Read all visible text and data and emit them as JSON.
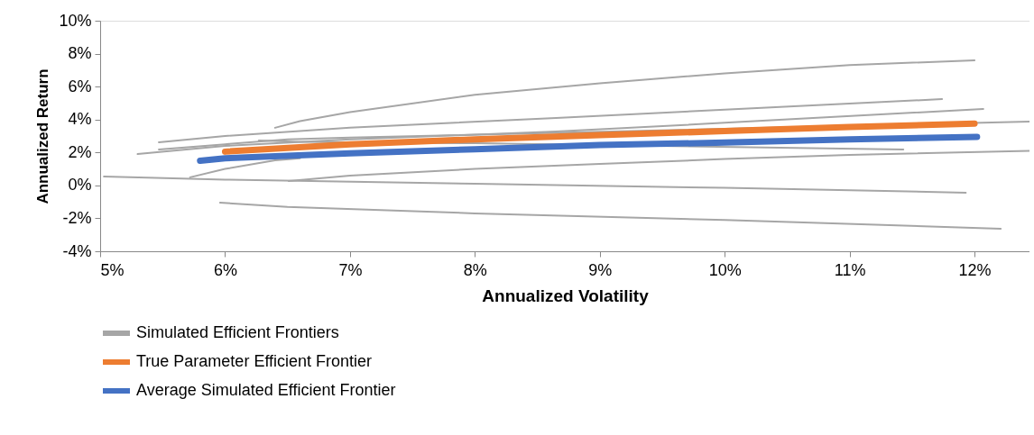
{
  "chart_data": {
    "type": "line",
    "xlabel": "Annualized Volatility",
    "ylabel": "Annualized Return",
    "xlim": [
      5,
      12.44
    ],
    "xticks": [
      {
        "value": 5,
        "label": "5%"
      },
      {
        "value": 6,
        "label": "6%"
      },
      {
        "value": 7,
        "label": "7%"
      },
      {
        "value": 8,
        "label": "8%"
      },
      {
        "value": 9,
        "label": "9%"
      },
      {
        "value": 10,
        "label": "10%"
      },
      {
        "value": 11,
        "label": "11%"
      },
      {
        "value": 12,
        "label": "12%"
      }
    ],
    "ylim": [
      -4,
      10
    ],
    "yticks": [
      {
        "value": -4,
        "label": "-4%"
      },
      {
        "value": -2,
        "label": "-2%"
      },
      {
        "value": 0,
        "label": "0%"
      },
      {
        "value": 2,
        "label": "2%"
      },
      {
        "value": 4,
        "label": "4%"
      },
      {
        "value": 6,
        "label": "6%"
      },
      {
        "value": 8,
        "label": "8%"
      },
      {
        "value": 10,
        "label": "10%"
      }
    ],
    "grid": false,
    "legend": "bottom",
    "marker": "none",
    "line_style": "solid",
    "series": [
      {
        "name": "Simulated Efficient Frontiers",
        "color": "#a6a6a6",
        "x": [
          6.4,
          6.6,
          7,
          8,
          9,
          10,
          11,
          12
        ],
        "values": [
          3.5,
          3.9,
          4.45,
          5.5,
          6.2,
          6.8,
          7.3,
          7.6
        ]
      },
      {
        "color": "#a6a6a6",
        "x": [
          5.47,
          6,
          7,
          8.65,
          10,
          11.74
        ],
        "values": [
          2.62,
          3.0,
          3.5,
          4.1,
          4.6,
          5.24
        ]
      },
      {
        "color": "#a6a6a6",
        "x": [
          5.3,
          6,
          7,
          8.65,
          10,
          12.07
        ],
        "values": [
          1.9,
          2.4,
          2.8,
          3.27,
          3.8,
          4.64
        ]
      },
      {
        "color": "#a6a6a6",
        "x": [
          5.47,
          6,
          6.5,
          7,
          12.44
        ],
        "values": [
          2.18,
          2.5,
          2.8,
          2.9,
          3.88
        ]
      },
      {
        "color": "#a6a6a6",
        "x": [
          6.27,
          6.6,
          7,
          8,
          11.43
        ],
        "values": [
          2.73,
          2.65,
          2.62,
          2.56,
          2.18
        ]
      },
      {
        "color": "#a6a6a6",
        "x": [
          5.72,
          6,
          6.4,
          6.6
        ],
        "values": [
          0.49,
          1.0,
          1.52,
          1.65
        ]
      },
      {
        "color": "#a6a6a6",
        "x": [
          6.51,
          7,
          8,
          9,
          10,
          11,
          12.44
        ],
        "values": [
          0.26,
          0.6,
          1.0,
          1.3,
          1.6,
          1.85,
          2.1
        ]
      },
      {
        "color": "#a6a6a6",
        "x": [
          5.03,
          6,
          8,
          10,
          11.93
        ],
        "values": [
          0.54,
          0.35,
          0.1,
          -0.15,
          -0.44
        ]
      },
      {
        "color": "#a6a6a6",
        "x": [
          5.96,
          6.5,
          8,
          10,
          12.21
        ],
        "values": [
          -1.05,
          -1.3,
          -1.7,
          -2.1,
          -2.63
        ]
      },
      {
        "name": "True Parameter Efficient Frontier",
        "color": "#ed7d31",
        "x": [
          6,
          7,
          8,
          9,
          10,
          11,
          12
        ],
        "values": [
          2.05,
          2.5,
          2.8,
          3.05,
          3.3,
          3.55,
          3.75
        ]
      },
      {
        "name": "Average Simulated Efficient Frontier",
        "color": "#4472c4",
        "x": [
          5.8,
          6,
          7,
          8,
          9,
          10,
          11,
          12.02
        ],
        "values": [
          1.5,
          1.65,
          1.95,
          2.2,
          2.45,
          2.6,
          2.8,
          2.95
        ]
      }
    ]
  }
}
